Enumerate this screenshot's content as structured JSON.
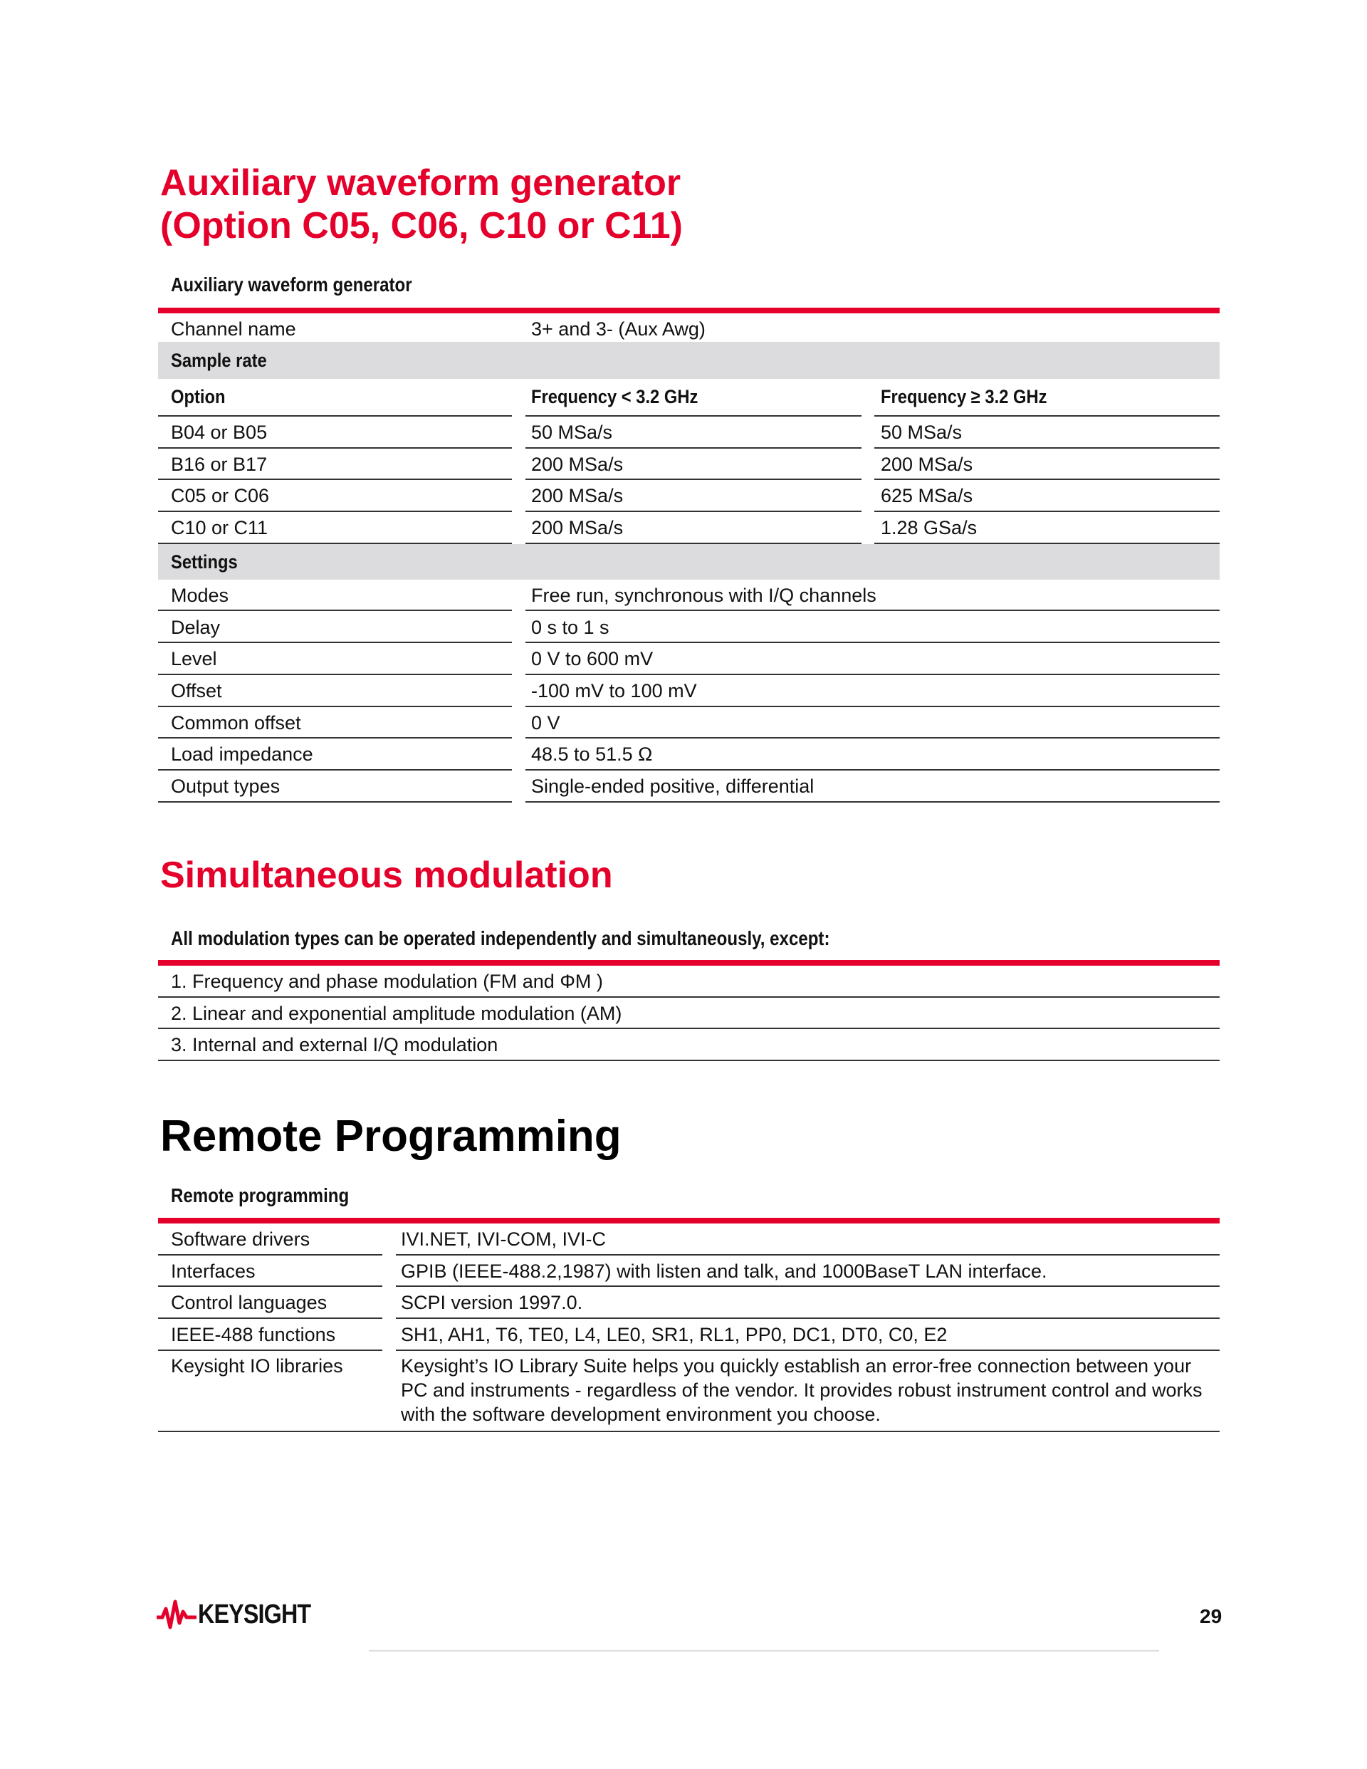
{
  "section1": {
    "title_line1": "Auxiliary waveform generator",
    "title_line2": "(Option C05, C06, C10 or C11)",
    "table_caption": "Auxiliary waveform generator",
    "channel_name": {
      "label": "Channel name",
      "value": "3+ and 3- (Aux Awg)"
    },
    "sample_rate_heading": "Sample rate",
    "columns": [
      "Option",
      "Frequency < 3.2 GHz",
      "Frequency ≥ 3.2 GHz"
    ],
    "rows": [
      [
        "B04 or B05",
        "50 MSa/s",
        "50 MSa/s"
      ],
      [
        "B16 or B17",
        "200 MSa/s",
        "200 MSa/s"
      ],
      [
        "C05 or C06",
        "200 MSa/s",
        "625 MSa/s"
      ],
      [
        "C10 or C11",
        "200 MSa/s",
        "1.28 GSa/s"
      ]
    ],
    "settings_heading": "Settings",
    "settings": [
      [
        "Modes",
        "Free run, synchronous with I/Q channels"
      ],
      [
        "Delay",
        "0 s to 1 s"
      ],
      [
        "Level",
        "0 V to 600 mV"
      ],
      [
        "Offset",
        "-100 mV to 100 mV"
      ],
      [
        "Common offset",
        "0 V"
      ],
      [
        "Load impedance",
        "48.5 to 51.5 Ω"
      ],
      [
        "Output types",
        "Single-ended positive, differential"
      ]
    ]
  },
  "section2": {
    "title": "Simultaneous modulation",
    "table_caption": "All modulation types can be operated independently and simultaneously, except:",
    "items": [
      "1. Frequency and phase modulation (FM and ΦM )",
      "2. Linear and exponential amplitude modulation (AM)",
      "3. Internal and external I/Q modulation"
    ]
  },
  "section3": {
    "title": "Remote Programming",
    "table_caption": "Remote programming",
    "rows": [
      [
        "Software  drivers",
        "IVI.NET, IVI-COM, IVI-C"
      ],
      [
        "Interfaces",
        "GPIB (IEEE-488.2,1987) with listen and talk, and 1000BaseT LAN interface."
      ],
      [
        "Control languages",
        "SCPI version 1997.0."
      ],
      [
        "IEEE-488  functions",
        "SH1, AH1, T6, TE0, L4, LE0, SR1, RL1, PP0, DC1, DT0, C0, E2"
      ],
      [
        "Keysight IO libraries",
        "Keysight’s IO Library Suite helps you quickly establish an error-free connection between your PC and instruments -  regardless of the vendor. It provides robust instrument control and works with the software development environment  you choose."
      ]
    ]
  },
  "footer": {
    "logo_text": "KEYSIGHT",
    "page_number": "29"
  },
  "colors": {
    "accent": "#e4002b",
    "gray_row": "#dcdcde"
  }
}
